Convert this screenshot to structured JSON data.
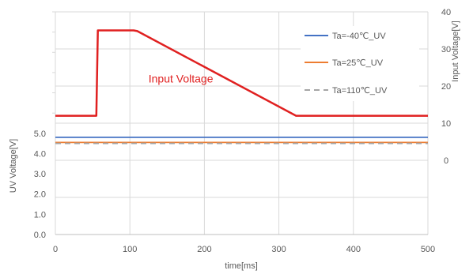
{
  "chart_data": {
    "type": "line",
    "x_axis": {
      "label": "time[ms]",
      "range": [
        0,
        500
      ],
      "ticks": [
        "0",
        "100",
        "200",
        "300",
        "400",
        "500"
      ],
      "grid": true
    },
    "y_left_axis": {
      "label": "UV Voltage[V]",
      "range": [
        0,
        11
      ],
      "ticks": [
        "0.0",
        "1.0",
        "2.0",
        "3.0",
        "4.0",
        "5.0"
      ]
    },
    "y_right_axis": {
      "label": "Input Voltage[V]",
      "range": [
        -20,
        40
      ],
      "ticks": [
        "0",
        "10",
        "20",
        "30",
        "40"
      ]
    },
    "series": [
      {
        "name": "Ta=-40℃_UV",
        "axis": "left",
        "color": "#4472C4",
        "dash": "solid",
        "x": [
          0,
          500
        ],
        "y": [
          4.8,
          4.8
        ]
      },
      {
        "name": "Ta=25℃_UV",
        "axis": "left",
        "color": "#ED7D31",
        "dash": "solid",
        "x": [
          0,
          500
        ],
        "y": [
          4.55,
          4.55
        ]
      },
      {
        "name": "Ta=110℃_UV",
        "axis": "left",
        "color": "#A5A5A5",
        "dash": "dashed",
        "x": [
          0,
          500
        ],
        "y": [
          4.5,
          4.5
        ]
      },
      {
        "name": "Input Voltage",
        "axis": "right",
        "color": "#E02020",
        "dash": "solid",
        "x": [
          0,
          55,
          57,
          105,
          110,
          323,
          500
        ],
        "y": [
          12,
          12,
          35,
          35,
          34.8,
          12,
          12
        ]
      }
    ],
    "legend": {
      "position": "top-right",
      "entries": [
        "Ta=-40℃_UV",
        "Ta=25℃_UV",
        "Ta=110℃_UV"
      ]
    },
    "annotations": [
      {
        "text": "Input Voltage",
        "color": "#E02020",
        "x": 125,
        "y": 22
      }
    ]
  }
}
